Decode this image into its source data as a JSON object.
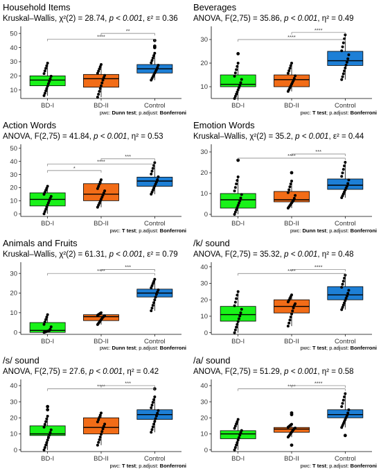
{
  "chart_data": [
    {
      "type": "box",
      "title": "Household Items",
      "test": "Kruskal–Wallis",
      "stat_sym": "χ²",
      "df": "(2)",
      "stat": "28.74",
      "p": "p < 0.001",
      "eff_sym": "ε²",
      "eff": "0.36",
      "pwc": "Dunn test",
      "padj": "Bonferroni",
      "categories": [
        "BD-I",
        "BD-II",
        "Control"
      ],
      "colors": [
        "#19f219",
        "#f26c17",
        "#1d7fd6"
      ],
      "yticks": [
        10,
        20,
        30,
        40,
        50
      ],
      "ylim": [
        4,
        54
      ],
      "boxes": [
        {
          "min": 6,
          "q1": 13,
          "median": 17,
          "q3": 20,
          "max": 29
        },
        {
          "min": 5,
          "q1": 12,
          "median": 18,
          "q3": 21,
          "max": 28
        },
        {
          "min": 17,
          "q1": 22,
          "median": 25,
          "q3": 28,
          "max": 36
        }
      ],
      "outliers": [
        [],
        [],
        [
          40,
          41,
          45
        ]
      ],
      "brackets": [
        {
          "from": 0,
          "to": 2,
          "label": "****",
          "y": 46
        },
        {
          "from": 1,
          "to": 2,
          "label": "**",
          "y": 50
        }
      ]
    },
    {
      "type": "box",
      "title": "Beverages",
      "test": "ANOVA",
      "stat_sym": "F",
      "df": "(2,75)",
      "stat": "35.86",
      "p": "p < 0.001",
      "eff_sym": "η²",
      "eff": "0.49",
      "pwc": "T test",
      "padj": "Bonferroni",
      "categories": [
        "BD-I",
        "BD-II",
        "Control"
      ],
      "colors": [
        "#19f219",
        "#f26c17",
        "#1d7fd6"
      ],
      "yticks": [
        10,
        20,
        30
      ],
      "ylim": [
        5,
        35
      ],
      "boxes": [
        {
          "min": 5,
          "q1": 10,
          "median": 11,
          "q3": 15,
          "max": 20
        },
        {
          "min": 8,
          "q1": 10,
          "median": 13,
          "q3": 15,
          "max": 20
        },
        {
          "min": 13,
          "q1": 19,
          "median": 21,
          "q3": 25,
          "max": 32
        }
      ],
      "outliers": [
        [
          24
        ],
        [],
        []
      ],
      "brackets": [
        {
          "from": 0,
          "to": 2,
          "label": "****",
          "y": 30
        },
        {
          "from": 1,
          "to": 2,
          "label": "****",
          "y": 33
        }
      ]
    },
    {
      "type": "box",
      "title": "Action Words",
      "test": "ANOVA",
      "stat_sym": "F",
      "df": "(2,75)",
      "stat": "41.84",
      "p": "p < 0.001",
      "eff_sym": "η²",
      "eff": "0.53",
      "pwc": "T test",
      "padj": "Bonferroni",
      "categories": [
        "BD-I",
        "BD-II",
        "Control"
      ],
      "colors": [
        "#19f219",
        "#f26c17",
        "#1d7fd6"
      ],
      "yticks": [
        0,
        10,
        20,
        30,
        40,
        50
      ],
      "ylim": [
        -2,
        52
      ],
      "boxes": [
        {
          "min": 0,
          "q1": 6,
          "median": 11,
          "q3": 16,
          "max": 21
        },
        {
          "min": 5,
          "q1": 10,
          "median": 15,
          "q3": 23,
          "max": 26
        },
        {
          "min": 15,
          "q1": 21,
          "median": 25,
          "q3": 28,
          "max": 39
        }
      ],
      "outliers": [
        [],
        [],
        []
      ],
      "brackets": [
        {
          "from": 0,
          "to": 1,
          "label": "*",
          "y": 33
        },
        {
          "from": 0,
          "to": 2,
          "label": "****",
          "y": 38
        },
        {
          "from": 1,
          "to": 2,
          "label": "***",
          "y": 42
        }
      ]
    },
    {
      "type": "box",
      "title": "Emotion Words",
      "test": "Kruskal–Wallis",
      "stat_sym": "χ²",
      "df": "(2)",
      "stat": "35.2",
      "p": "p < 0.001",
      "eff_sym": "ε²",
      "eff": "0.44",
      "pwc": "Dunn test",
      "padj": "Bonferroni",
      "categories": [
        "BD-I",
        "BD-II",
        "Control"
      ],
      "colors": [
        "#19f219",
        "#f26c17",
        "#1d7fd6"
      ],
      "yticks": [
        0,
        10,
        20,
        30
      ],
      "ylim": [
        -1,
        33
      ],
      "boxes": [
        {
          "min": 0,
          "q1": 3,
          "median": 7,
          "q3": 10,
          "max": 18
        },
        {
          "min": 3,
          "q1": 6,
          "median": 7,
          "q3": 11,
          "max": 16
        },
        {
          "min": 8,
          "q1": 12,
          "median": 14,
          "q3": 17,
          "max": 25
        }
      ],
      "outliers": [
        [
          26
        ],
        [
          20
        ],
        []
      ],
      "brackets": [
        {
          "from": 0,
          "to": 2,
          "label": "****",
          "y": 27
        },
        {
          "from": 1,
          "to": 2,
          "label": "***",
          "y": 29
        }
      ]
    },
    {
      "type": "box",
      "title": "Animals and Fruits",
      "test": "Kruskal–Wallis",
      "stat_sym": "χ²",
      "df": "(2)",
      "stat": "61.31",
      "p": "p < 0.001",
      "eff_sym": "ε²",
      "eff": "0.79",
      "pwc": "Dunn test",
      "padj": "Bonferroni",
      "categories": [
        "BD-I",
        "BD-II",
        "Control"
      ],
      "colors": [
        "#19f219",
        "#f26c17",
        "#1d7fd6"
      ],
      "yticks": [
        0,
        10,
        20,
        30
      ],
      "ylim": [
        -1,
        35
      ],
      "boxes": [
        {
          "min": 0,
          "q1": 0,
          "median": 1,
          "q3": 5,
          "max": 9
        },
        {
          "min": 4,
          "q1": 6,
          "median": 8,
          "q3": 9,
          "max": 10
        },
        {
          "min": 11,
          "q1": 18,
          "median": 20,
          "q3": 22,
          "max": 27
        }
      ],
      "outliers": [
        [],
        [],
        []
      ],
      "brackets": [
        {
          "from": 0,
          "to": 2,
          "label": "****",
          "y": 30
        },
        {
          "from": 1,
          "to": 2,
          "label": "***",
          "y": 32
        }
      ]
    },
    {
      "type": "box",
      "title": "/k/ sound",
      "test": "ANOVA",
      "stat_sym": "F",
      "df": "(2,75)",
      "stat": "35.32",
      "p": "p < 0.001",
      "eff_sym": "η²",
      "eff": "0.48",
      "pwc": "T test",
      "padj": "Bonferroni",
      "categories": [
        "BD-I",
        "BD-II",
        "Control"
      ],
      "colors": [
        "#19f219",
        "#f26c17",
        "#1d7fd6"
      ],
      "yticks": [
        0,
        10,
        20,
        30,
        40
      ],
      "ylim": [
        -1,
        42
      ],
      "boxes": [
        {
          "min": 0,
          "q1": 7,
          "median": 11,
          "q3": 16,
          "max": 25
        },
        {
          "min": 4,
          "q1": 12,
          "median": 16,
          "q3": 20,
          "max": 23
        },
        {
          "min": 14,
          "q1": 20,
          "median": 23,
          "q3": 28,
          "max": 35
        }
      ],
      "outliers": [
        [],
        [],
        []
      ],
      "brackets": [
        {
          "from": 0,
          "to": 2,
          "label": "****",
          "y": 36
        },
        {
          "from": 1,
          "to": 2,
          "label": "****",
          "y": 38.5
        }
      ]
    },
    {
      "type": "box",
      "title": "/s/ sound",
      "test": "ANOVA",
      "stat_sym": "F",
      "df": "(2,75)",
      "stat": "27.6",
      "p": "p < 0.001",
      "eff_sym": "η²",
      "eff": "0.42",
      "pwc": "T test",
      "padj": "Bonferroni",
      "categories": [
        "BD-I",
        "BD-II",
        "Control"
      ],
      "colors": [
        "#19f219",
        "#f26c17",
        "#1d7fd6"
      ],
      "yticks": [
        0,
        10,
        20,
        30,
        40
      ],
      "ylim": [
        -1,
        43
      ],
      "boxes": [
        {
          "min": 0,
          "q1": 9,
          "median": 10,
          "q3": 15,
          "max": 21
        },
        {
          "min": 3,
          "q1": 10,
          "median": 14,
          "q3": 20,
          "max": 23
        },
        {
          "min": 11,
          "q1": 19,
          "median": 22,
          "q3": 25,
          "max": 33
        }
      ],
      "outliers": [
        [
          25,
          27
        ],
        [],
        [
          38
        ]
      ],
      "brackets": [
        {
          "from": 0,
          "to": 2,
          "label": "****",
          "y": 38
        },
        {
          "from": 1,
          "to": 2,
          "label": "***",
          "y": 40
        }
      ]
    },
    {
      "type": "box",
      "title": "/a/ sound",
      "test": "ANOVA",
      "stat_sym": "F",
      "df": "(2,75)",
      "stat": "51.29",
      "p": "p < 0.001",
      "eff_sym": "η²",
      "eff": "0.58",
      "pwc": "T test",
      "padj": "Bonferroni",
      "categories": [
        "BD-I",
        "BD-II",
        "Control"
      ],
      "colors": [
        "#19f219",
        "#f26c17",
        "#1d7fd6"
      ],
      "yticks": [
        0,
        10,
        20,
        30,
        40
      ],
      "ylim": [
        -1,
        43
      ],
      "boxes": [
        {
          "min": 0,
          "q1": 7,
          "median": 10,
          "q3": 12,
          "max": 19
        },
        {
          "min": 8,
          "q1": 11,
          "median": 13,
          "q3": 14,
          "max": 16
        },
        {
          "min": 14,
          "q1": 20,
          "median": 22,
          "q3": 25,
          "max": 35
        }
      ],
      "outliers": [
        [],
        [
          3,
          22,
          23
        ],
        [
          9
        ]
      ],
      "brackets": [
        {
          "from": 0,
          "to": 2,
          "label": "****",
          "y": 38
        },
        {
          "from": 1,
          "to": 2,
          "label": "****",
          "y": 40
        }
      ]
    }
  ],
  "labels": {
    "pwc_prefix": "pwc: ",
    "padj_prefix": "; p.adjust: "
  }
}
